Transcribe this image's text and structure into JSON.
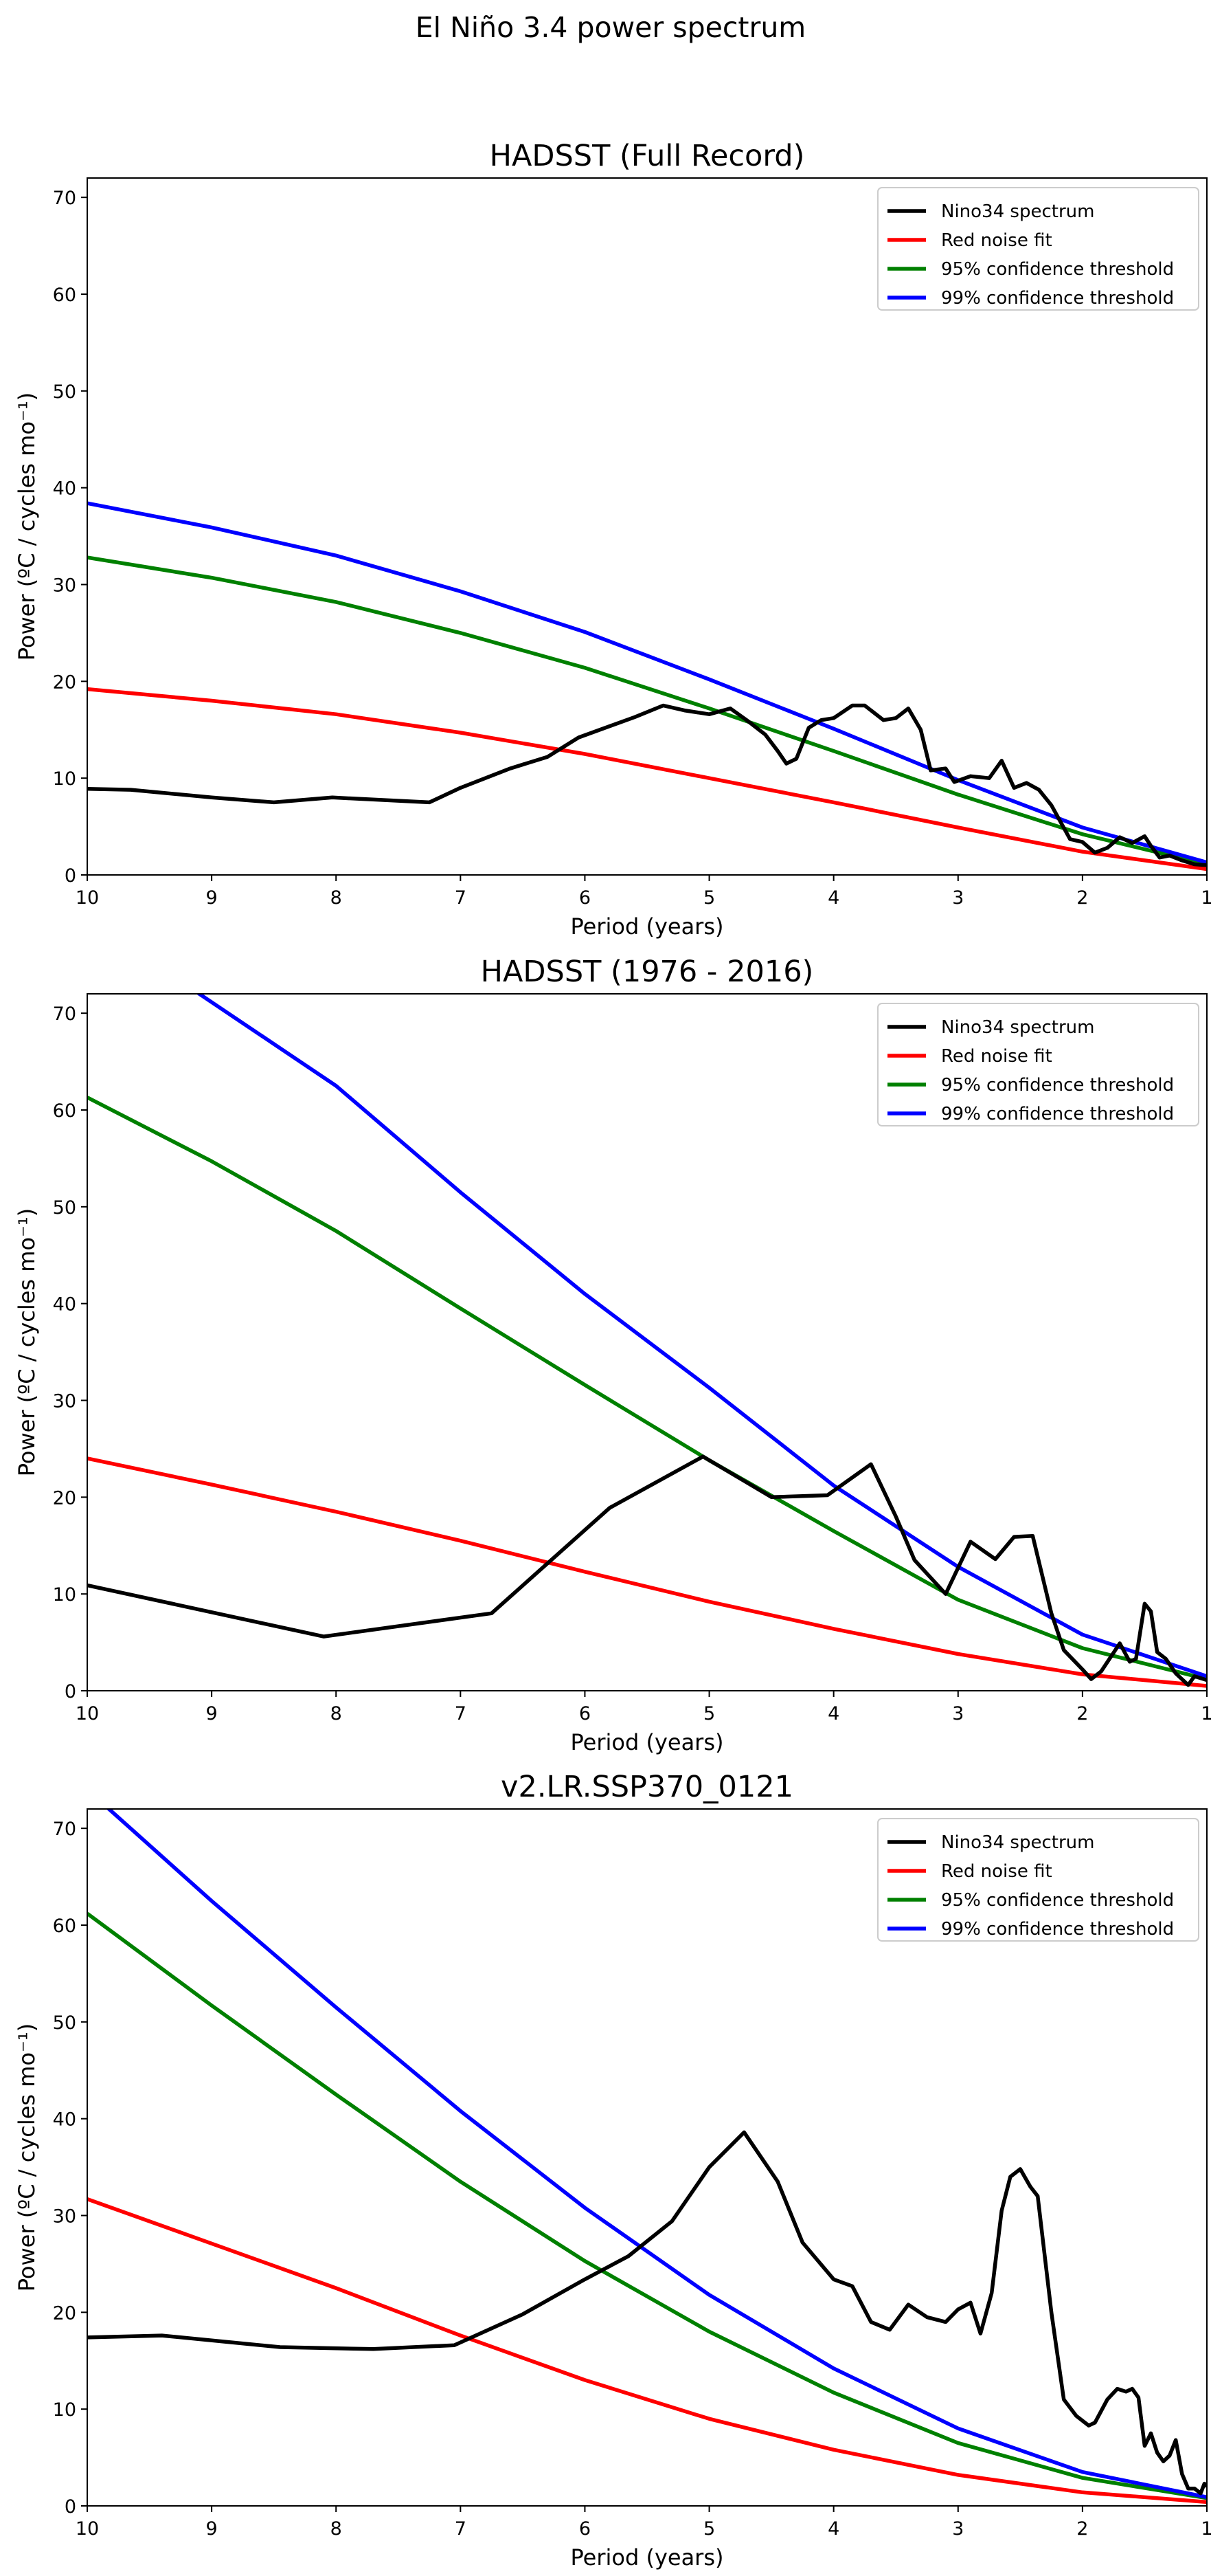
{
  "suptitle": "El Niño 3.4 power spectrum",
  "colors": {
    "Nino34 spectrum": "#000000",
    "Red noise fit": "#ff0000",
    "95% confidence threshold": "#008000",
    "99% confidence threshold": "#0000ff"
  },
  "chart_data": [
    {
      "type": "line",
      "title": "HADSST (Full Record)",
      "xlabel": "Period (years)",
      "ylabel": "Power (ºC / cycles mo⁻¹)",
      "xlim": [
        10,
        1
      ],
      "ylim": [
        0,
        72
      ],
      "xticks": [
        10,
        9,
        8,
        7,
        6,
        5,
        4,
        3,
        2,
        1
      ],
      "yticks": [
        0,
        10,
        20,
        30,
        40,
        50,
        60,
        70
      ],
      "legend": "top-right",
      "series": [
        {
          "name": "Nino34 spectrum",
          "points": [
            [
              10,
              8.9
            ],
            [
              9.65,
              8.8
            ],
            [
              9,
              8.0
            ],
            [
              8.5,
              7.5
            ],
            [
              8.03,
              8.0
            ],
            [
              7.25,
              7.5
            ],
            [
              7,
              9
            ],
            [
              6.6,
              11
            ],
            [
              6.3,
              12.2
            ],
            [
              6.05,
              14.2
            ],
            [
              5.6,
              16.3
            ],
            [
              5.37,
              17.5
            ],
            [
              5.2,
              17
            ],
            [
              5,
              16.6
            ],
            [
              4.83,
              17.2
            ],
            [
              4.7,
              16
            ],
            [
              4.55,
              14.5
            ],
            [
              4.45,
              12.8
            ],
            [
              4.38,
              11.5
            ],
            [
              4.3,
              12
            ],
            [
              4.2,
              15.2
            ],
            [
              4.1,
              16
            ],
            [
              4,
              16.2
            ],
            [
              3.85,
              17.5
            ],
            [
              3.75,
              17.5
            ],
            [
              3.6,
              16
            ],
            [
              3.5,
              16.2
            ],
            [
              3.4,
              17.2
            ],
            [
              3.3,
              15
            ],
            [
              3.22,
              10.8
            ],
            [
              3.1,
              11
            ],
            [
              3.03,
              9.6
            ],
            [
              2.9,
              10.2
            ],
            [
              2.75,
              10
            ],
            [
              2.65,
              11.8
            ],
            [
              2.55,
              9
            ],
            [
              2.45,
              9.5
            ],
            [
              2.35,
              8.8
            ],
            [
              2.25,
              7.2
            ],
            [
              2.1,
              3.7
            ],
            [
              2,
              3.4
            ],
            [
              1.9,
              2.3
            ],
            [
              1.8,
              2.8
            ],
            [
              1.7,
              3.9
            ],
            [
              1.6,
              3.3
            ],
            [
              1.5,
              4
            ],
            [
              1.45,
              3
            ],
            [
              1.38,
              1.8
            ],
            [
              1.3,
              2
            ],
            [
              1.2,
              1.5
            ],
            [
              1.1,
              1.1
            ],
            [
              1,
              1
            ]
          ]
        },
        {
          "name": "Red noise fit",
          "points": [
            [
              10,
              19.2
            ],
            [
              9,
              18
            ],
            [
              8,
              16.6
            ],
            [
              7,
              14.7
            ],
            [
              6,
              12.5
            ],
            [
              5,
              10
            ],
            [
              4,
              7.5
            ],
            [
              3,
              4.9
            ],
            [
              2,
              2.4
            ],
            [
              1,
              0.6
            ]
          ]
        },
        {
          "name": "95% confidence threshold",
          "points": [
            [
              10,
              32.8
            ],
            [
              9,
              30.7
            ],
            [
              8,
              28.2
            ],
            [
              7,
              25
            ],
            [
              6,
              21.4
            ],
            [
              5,
              17.2
            ],
            [
              4,
              12.8
            ],
            [
              3,
              8.3
            ],
            [
              2,
              4.2
            ],
            [
              1,
              1.1
            ]
          ]
        },
        {
          "name": "99% confidence threshold",
          "points": [
            [
              10,
              38.4
            ],
            [
              9,
              35.9
            ],
            [
              8,
              33
            ],
            [
              7,
              29.3
            ],
            [
              6,
              25.1
            ],
            [
              5,
              20.2
            ],
            [
              4,
              15.1
            ],
            [
              3,
              9.8
            ],
            [
              2,
              4.9
            ],
            [
              1,
              1.3
            ]
          ]
        }
      ]
    },
    {
      "type": "line",
      "title": "HADSST (1976 - 2016)",
      "xlabel": "Period (years)",
      "ylabel": "Power (ºC / cycles mo⁻¹)",
      "xlim": [
        10,
        1
      ],
      "ylim": [
        0,
        72
      ],
      "xticks": [
        10,
        9,
        8,
        7,
        6,
        5,
        4,
        3,
        2,
        1
      ],
      "yticks": [
        0,
        10,
        20,
        30,
        40,
        50,
        60,
        70
      ],
      "legend": "top-right",
      "series": [
        {
          "name": "Nino34 spectrum",
          "points": [
            [
              10,
              10.9
            ],
            [
              8.1,
              5.6
            ],
            [
              6.75,
              8
            ],
            [
              5.8,
              18.9
            ],
            [
              5.05,
              24.2
            ],
            [
              4.5,
              20
            ],
            [
              4.05,
              20.2
            ],
            [
              3.7,
              23.4
            ],
            [
              3.5,
              18
            ],
            [
              3.35,
              13.5
            ],
            [
              3.1,
              10
            ],
            [
              2.9,
              15.4
            ],
            [
              2.7,
              13.6
            ],
            [
              2.55,
              15.9
            ],
            [
              2.4,
              16
            ],
            [
              2.25,
              8
            ],
            [
              2.15,
              4.2
            ],
            [
              2,
              2.2
            ],
            [
              1.93,
              1.2
            ],
            [
              1.85,
              2
            ],
            [
              1.7,
              4.9
            ],
            [
              1.62,
              3
            ],
            [
              1.57,
              3.3
            ],
            [
              1.5,
              9
            ],
            [
              1.45,
              8.2
            ],
            [
              1.4,
              4
            ],
            [
              1.33,
              3.3
            ],
            [
              1.25,
              1.8
            ],
            [
              1.15,
              0.6
            ],
            [
              1.1,
              1.5
            ],
            [
              1,
              1.1
            ]
          ]
        },
        {
          "name": "Red noise fit",
          "points": [
            [
              10,
              24
            ],
            [
              9,
              21.3
            ],
            [
              8,
              18.5
            ],
            [
              7,
              15.5
            ],
            [
              6,
              12.3
            ],
            [
              5,
              9.2
            ],
            [
              4,
              6.4
            ],
            [
              3,
              3.8
            ],
            [
              2,
              1.7
            ],
            [
              1,
              0.5
            ]
          ]
        },
        {
          "name": "95% confidence threshold",
          "points": [
            [
              10,
              61.3
            ],
            [
              9,
              54.7
            ],
            [
              8,
              47.5
            ],
            [
              7,
              39.5
            ],
            [
              6,
              31.6
            ],
            [
              5,
              23.8
            ],
            [
              4,
              16.5
            ],
            [
              3,
              9.4
            ],
            [
              2,
              4.4
            ],
            [
              1,
              1.2
            ]
          ]
        },
        {
          "name": "99% confidence threshold",
          "points": [
            [
              10,
              82
            ],
            [
              9.1,
              72
            ],
            [
              8,
              62.5
            ],
            [
              7,
              51.5
            ],
            [
              6,
              41
            ],
            [
              5,
              31.3
            ],
            [
              4,
              21.2
            ],
            [
              3,
              12.8
            ],
            [
              2,
              5.8
            ],
            [
              1,
              1.5
            ]
          ]
        }
      ]
    },
    {
      "type": "line",
      "title": "v2.LR.SSP370_0121",
      "xlabel": "Period (years)",
      "ylabel": "Power (ºC / cycles mo⁻¹)",
      "xlim": [
        10,
        1
      ],
      "ylim": [
        0,
        72
      ],
      "xticks": [
        10,
        9,
        8,
        7,
        6,
        5,
        4,
        3,
        2,
        1
      ],
      "yticks": [
        0,
        10,
        20,
        30,
        40,
        50,
        60,
        70
      ],
      "legend": "top-right",
      "series": [
        {
          "name": "Nino34 spectrum",
          "points": [
            [
              10,
              17.4
            ],
            [
              9.4,
              17.6
            ],
            [
              8.45,
              16.4
            ],
            [
              7.7,
              16.2
            ],
            [
              7.05,
              16.6
            ],
            [
              6.5,
              19.8
            ],
            [
              6,
              23.4
            ],
            [
              5.65,
              25.8
            ],
            [
              5.3,
              29.4
            ],
            [
              5,
              35
            ],
            [
              4.72,
              38.6
            ],
            [
              4.45,
              33.5
            ],
            [
              4.25,
              27.2
            ],
            [
              4,
              23.4
            ],
            [
              3.85,
              22.7
            ],
            [
              3.7,
              19
            ],
            [
              3.55,
              18.2
            ],
            [
              3.4,
              20.8
            ],
            [
              3.25,
              19.5
            ],
            [
              3.1,
              19
            ],
            [
              3,
              20.3
            ],
            [
              2.9,
              21
            ],
            [
              2.82,
              17.8
            ],
            [
              2.73,
              22
            ],
            [
              2.65,
              30.5
            ],
            [
              2.58,
              34
            ],
            [
              2.5,
              34.8
            ],
            [
              2.42,
              33
            ],
            [
              2.36,
              32
            ],
            [
              2.25,
              20
            ],
            [
              2.15,
              11
            ],
            [
              2.05,
              9.3
            ],
            [
              1.95,
              8.3
            ],
            [
              1.9,
              8.6
            ],
            [
              1.8,
              11
            ],
            [
              1.72,
              12.1
            ],
            [
              1.65,
              11.8
            ],
            [
              1.6,
              12.1
            ],
            [
              1.55,
              11.2
            ],
            [
              1.5,
              6.2
            ],
            [
              1.45,
              7.5
            ],
            [
              1.4,
              5.5
            ],
            [
              1.35,
              4.6
            ],
            [
              1.3,
              5.2
            ],
            [
              1.25,
              6.8
            ],
            [
              1.2,
              3.3
            ],
            [
              1.15,
              1.8
            ],
            [
              1.1,
              1.8
            ],
            [
              1.05,
              1.3
            ],
            [
              1.02,
              2.3
            ],
            [
              1,
              2
            ]
          ]
        },
        {
          "name": "Red noise fit",
          "points": [
            [
              10,
              31.7
            ],
            [
              9,
              27.1
            ],
            [
              8,
              22.5
            ],
            [
              7,
              17.6
            ],
            [
              6,
              13
            ],
            [
              5,
              9
            ],
            [
              4,
              5.8
            ],
            [
              3,
              3.2
            ],
            [
              2,
              1.4
            ],
            [
              1,
              0.4
            ]
          ]
        },
        {
          "name": "95% confidence threshold",
          "points": [
            [
              10,
              61.2
            ],
            [
              9,
              51.7
            ],
            [
              8,
              42.5
            ],
            [
              7,
              33.5
            ],
            [
              6,
              25.3
            ],
            [
              5,
              18
            ],
            [
              4,
              11.7
            ],
            [
              3,
              6.5
            ],
            [
              2,
              2.9
            ],
            [
              1,
              0.8
            ]
          ]
        },
        {
          "name": "99% confidence threshold",
          "points": [
            [
              10,
              74
            ],
            [
              9,
              62.5
            ],
            [
              8,
              51.5
            ],
            [
              7,
              40.8
            ],
            [
              6,
              30.8
            ],
            [
              5,
              21.8
            ],
            [
              4,
              14.2
            ],
            [
              3,
              8
            ],
            [
              2,
              3.5
            ],
            [
              1,
              0.9
            ]
          ]
        }
      ]
    }
  ]
}
